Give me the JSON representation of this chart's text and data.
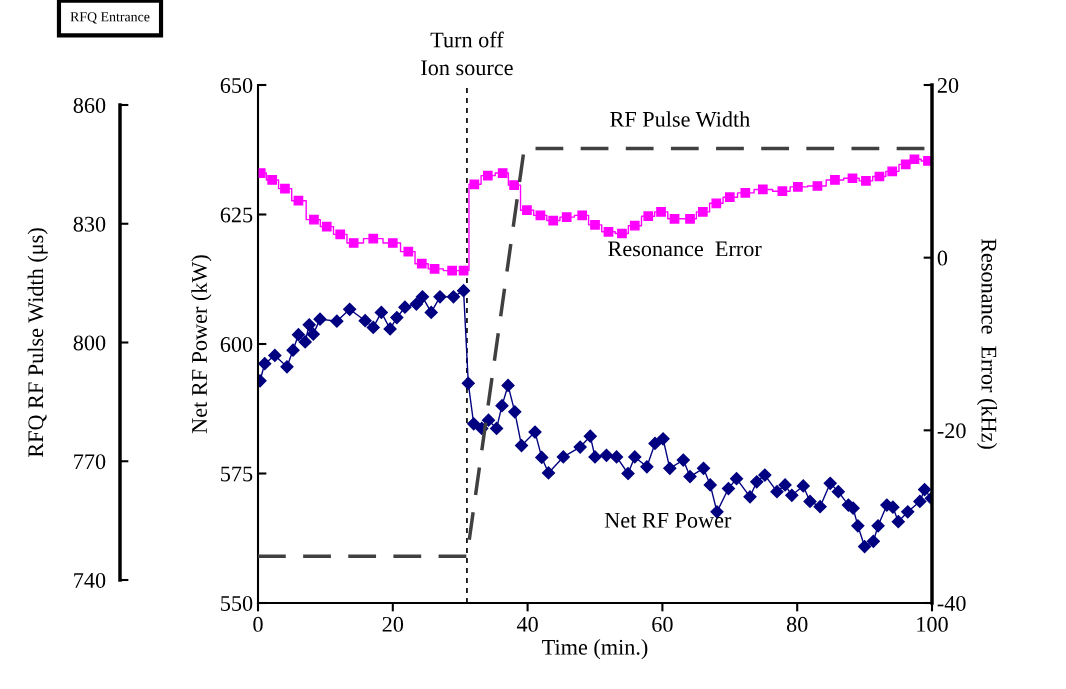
{
  "chart_data": {
    "type": "line",
    "xlabel": "Time (min.)",
    "ylabel": "Net RF Power (kW)",
    "y2label": "Resonance  Error (kHz)",
    "y3label": "RFQ RF Pulse Width (μs)",
    "xlim": [
      0,
      100
    ],
    "xticks": [
      0,
      20,
      40,
      60,
      80,
      100
    ],
    "ylim": [
      550,
      650
    ],
    "yticks": [
      550,
      575,
      600,
      625,
      650
    ],
    "y2lim": [
      -40,
      20
    ],
    "y2ticks": [
      -40,
      -20,
      0,
      20
    ],
    "y3lim": [
      740,
      860
    ],
    "y3ticks": [
      740,
      770,
      800,
      830,
      860
    ],
    "grid": false,
    "legend": false,
    "ref_lines": [
      {
        "axis": "x",
        "value": 31,
        "label": "Turn off\nIon source",
        "line_style": "dotted",
        "color": "#000000"
      }
    ],
    "annotations": [
      "RF Pulse Width",
      "Resonance  Error",
      "Net RF Power",
      "RFQ Entrance"
    ],
    "series": [
      {
        "color": "#000080",
        "marker": "diamond",
        "line_style": "solid",
        "x": [
          0.3,
          1.0,
          2.5,
          4.3,
          5.2,
          6.0,
          7.0,
          7.6,
          8.2,
          9.2,
          11.7,
          13.6,
          15.9,
          17.1,
          18.3,
          19.6,
          20.6,
          21.8,
          23.5,
          24.4,
          25.7,
          27.0,
          29.0,
          30.5,
          31.2,
          32.0,
          33.2,
          34.2,
          35.4,
          36.2,
          37.1,
          38.1,
          39.1,
          41.1,
          42.1,
          43.1,
          45.3,
          47.8,
          49.3,
          50.0,
          51.7,
          53.2,
          54.9,
          55.9,
          57.7,
          58.9,
          60.1,
          61.1,
          63.1,
          64.1,
          66.1,
          67.1,
          68.1,
          69.8,
          71.0,
          73.0,
          74.0,
          75.2,
          77.0,
          78.2,
          79.2,
          80.9,
          81.9,
          83.4,
          84.9,
          86.1,
          87.6,
          88.3,
          89.0,
          90.0,
          91.3,
          92.0,
          93.3,
          94.2,
          95.0,
          96.4,
          98.2,
          98.9,
          99.9
        ],
        "values": [
          592.9,
          596.2,
          597.8,
          595.6,
          598.8,
          601.8,
          600.4,
          603.7,
          601.9,
          604.8,
          604.4,
          606.7,
          604.5,
          603.2,
          606.1,
          602.9,
          605.1,
          607.1,
          607.7,
          609.1,
          606.1,
          609.1,
          609.1,
          610.3,
          592.4,
          584.6,
          583.7,
          585.3,
          583.7,
          588.1,
          592.0,
          586.9,
          580.4,
          583.0,
          578.1,
          575.1,
          578.2,
          580.1,
          582.2,
          578.2,
          578.5,
          578.2,
          575.0,
          578.2,
          576.3,
          580.8,
          581.7,
          576.0,
          577.6,
          574.4,
          576.0,
          572.8,
          567.6,
          572.1,
          574.0,
          570.5,
          573.4,
          574.7,
          571.5,
          572.8,
          570.8,
          572.6,
          569.6,
          568.6,
          573.1,
          571.5,
          568.9,
          568.3,
          564.9,
          560.9,
          561.9,
          564.9,
          568.9,
          568.5,
          565.7,
          567.6,
          569.6,
          571.9,
          570.2
        ]
      },
      {
        "axis": "y2",
        "type": "step",
        "color": "#ff00ff",
        "marker": "square",
        "line_style": "solid",
        "x": [
          0.4,
          2.1,
          4.0,
          6.0,
          8.3,
          10.2,
          12.2,
          14.2,
          17.1,
          20.0,
          22.3,
          24.3,
          26.2,
          28.8,
          30.5,
          32.1,
          34.1,
          36.3,
          38.0,
          39.9,
          41.9,
          43.8,
          45.8,
          48.1,
          50.0,
          52.0,
          54.0,
          55.9,
          57.9,
          59.8,
          61.8,
          64.1,
          66.0,
          68.0,
          70.0,
          72.3,
          74.9,
          77.8,
          80.1,
          83.0,
          85.6,
          88.2,
          90.2,
          92.2,
          94.1,
          96.1,
          97.4,
          99.4
        ],
        "values": [
          9.8,
          9.0,
          8.0,
          6.6,
          4.4,
          3.6,
          2.7,
          1.7,
          2.2,
          1.7,
          0.7,
          -0.7,
          -1.3,
          -1.5,
          -1.5,
          8.5,
          9.5,
          9.8,
          8.4,
          5.5,
          4.9,
          4.3,
          4.7,
          4.9,
          3.8,
          3.0,
          2.8,
          3.7,
          4.8,
          5.3,
          4.5,
          4.5,
          5.3,
          6.3,
          7.0,
          7.5,
          7.9,
          7.7,
          8.2,
          8.3,
          9.0,
          9.2,
          8.9,
          9.4,
          10.0,
          10.8,
          11.4,
          11.2
        ]
      },
      {
        "axis": "y3",
        "color": "#404040",
        "marker": "none",
        "line_style": "dashed",
        "x": [
          0,
          31,
          39.5,
          100
        ],
        "values": [
          746,
          746,
          849,
          849
        ]
      }
    ]
  }
}
